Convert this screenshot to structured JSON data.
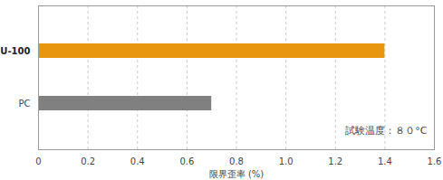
{
  "chart_data": {
    "type": "bar",
    "orientation": "horizontal",
    "categories": [
      "U-100",
      "PC"
    ],
    "values": [
      1.4,
      0.7
    ],
    "colors": [
      "#e8960f",
      "#808080"
    ],
    "xlim": [
      0,
      1.6
    ],
    "xticks": [
      0,
      0.2,
      0.4,
      0.6,
      0.8,
      {
        "value": 1,
        "label": "1.0"
      },
      1.2,
      1.4,
      1.6
    ],
    "xlabel": "限界歪率 (%)",
    "annotation": "試験温度：８０°C",
    "grid": true
  }
}
